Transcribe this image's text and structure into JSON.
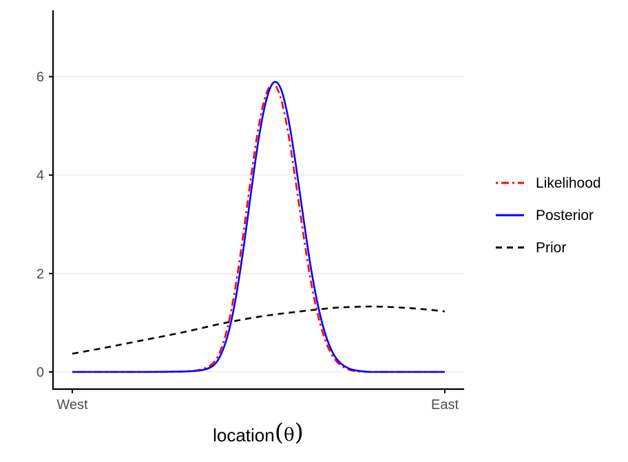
{
  "chart_data": {
    "type": "line",
    "title": "",
    "xlabel_text": "location",
    "xlabel_symbol": "θ",
    "ylabel": "",
    "xlim": [
      0,
      1
    ],
    "ylim": [
      -0.35,
      7.3
    ],
    "x_ticks": [
      {
        "value": 0,
        "label": "West"
      },
      {
        "value": 1,
        "label": "East"
      }
    ],
    "y_ticks": [
      {
        "value": 0,
        "label": "0"
      },
      {
        "value": 2,
        "label": "2"
      },
      {
        "value": 4,
        "label": "4"
      },
      {
        "value": 6,
        "label": "6"
      }
    ],
    "grid": "horizontal",
    "legend_position": "right",
    "series": [
      {
        "name": "Likelihood",
        "color": "#ff0000",
        "dash": "dot-dash",
        "x": [
          0,
          0.1,
          0.2,
          0.3,
          0.35,
          0.38,
          0.4,
          0.42,
          0.44,
          0.46,
          0.48,
          0.5,
          0.52,
          0.54,
          0.56,
          0.58,
          0.6,
          0.62,
          0.64,
          0.66,
          0.68,
          0.7,
          0.72,
          0.75,
          0.8,
          0.9,
          1
        ],
        "y": [
          0,
          0,
          0,
          0.01,
          0.06,
          0.2,
          0.48,
          1.01,
          1.82,
          2.86,
          3.98,
          4.98,
          5.64,
          5.85,
          5.55,
          4.83,
          3.85,
          2.81,
          1.86,
          1.13,
          0.62,
          0.31,
          0.14,
          0.03,
          0,
          0,
          0
        ]
      },
      {
        "name": "Posterior",
        "color": "#0000ff",
        "dash": "solid",
        "x": [
          0,
          0.1,
          0.2,
          0.3,
          0.35,
          0.38,
          0.4,
          0.42,
          0.44,
          0.46,
          0.48,
          0.5,
          0.52,
          0.54,
          0.56,
          0.58,
          0.6,
          0.62,
          0.64,
          0.66,
          0.68,
          0.7,
          0.72,
          0.75,
          0.8,
          0.9,
          1
        ],
        "y": [
          0,
          0,
          0,
          0.01,
          0.04,
          0.14,
          0.37,
          0.82,
          1.55,
          2.54,
          3.66,
          4.72,
          5.5,
          5.88,
          5.75,
          5.14,
          4.21,
          3.15,
          2.14,
          1.33,
          0.75,
          0.38,
          0.18,
          0.05,
          0,
          0,
          0
        ]
      },
      {
        "name": "Prior",
        "color": "#000000",
        "dash": "dashed",
        "x": [
          0,
          0.1,
          0.2,
          0.3,
          0.4,
          0.5,
          0.6,
          0.7,
          0.75,
          0.8,
          0.85,
          0.9,
          0.95,
          1
        ],
        "y": [
          0.37,
          0.51,
          0.66,
          0.81,
          0.98,
          1.12,
          1.22,
          1.3,
          1.32,
          1.33,
          1.32,
          1.3,
          1.27,
          1.23
        ]
      }
    ]
  }
}
